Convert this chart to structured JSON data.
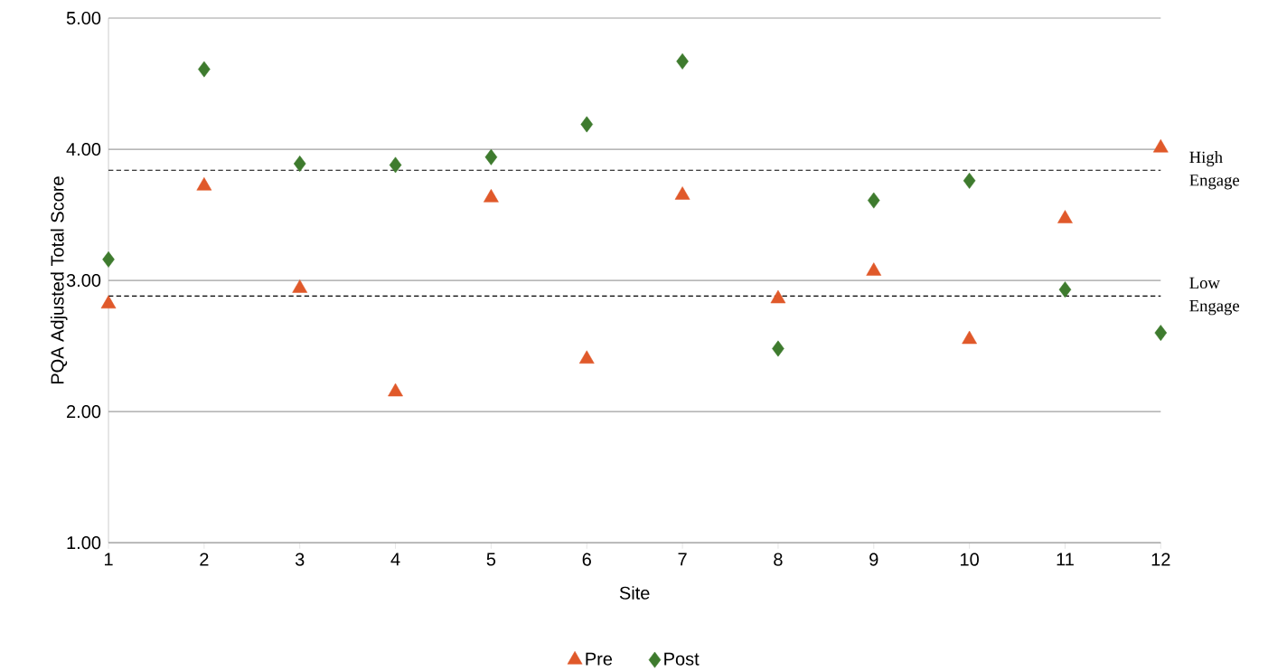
{
  "chart_data": {
    "type": "scatter",
    "xlabel": "Site",
    "ylabel": "PQA Adjusted Total Score",
    "xlim": [
      1,
      12
    ],
    "xticks": [
      1,
      2,
      3,
      4,
      5,
      6,
      7,
      8,
      9,
      10,
      11,
      12
    ],
    "ylim": [
      1,
      5
    ],
    "yticks": [
      {
        "value": 1,
        "label": "1.00"
      },
      {
        "value": 2,
        "label": "2.00"
      },
      {
        "value": 3,
        "label": "3.00"
      },
      {
        "value": 4,
        "label": "4.00"
      },
      {
        "value": 5,
        "label": "5.00"
      }
    ],
    "grid": "y",
    "legend": "bottom",
    "x": [
      1,
      2,
      3,
      4,
      5,
      6,
      7,
      8,
      9,
      10,
      11,
      12
    ],
    "series": [
      {
        "name": "Pre",
        "color": "#e0592a",
        "marker": "triangle",
        "values": [
          2.82,
          3.72,
          2.94,
          2.15,
          3.63,
          2.4,
          3.65,
          2.86,
          3.07,
          2.55,
          3.47,
          4.01
        ]
      },
      {
        "name": "Post",
        "color": "#3e7b2e",
        "marker": "diamond",
        "values": [
          3.16,
          4.61,
          3.89,
          3.88,
          3.94,
          4.19,
          4.67,
          2.48,
          3.61,
          3.76,
          2.93,
          2.6
        ]
      }
    ],
    "ref_lines": [
      {
        "axis": "y",
        "value": 3.84,
        "label": "High Engage",
        "line_style": "dashed",
        "color": "#000000"
      },
      {
        "axis": "y",
        "value": 2.88,
        "label": "Low Engage",
        "line_style": "dashed",
        "color": "#000000"
      }
    ]
  }
}
